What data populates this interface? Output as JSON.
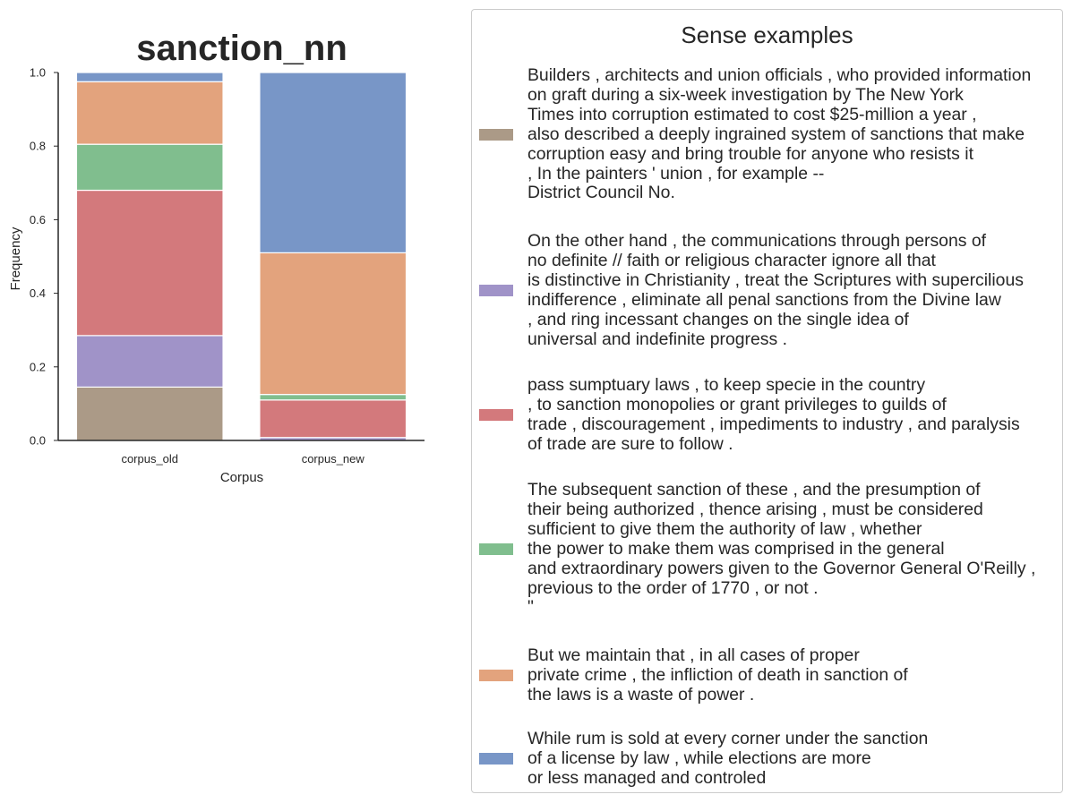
{
  "chart_data": {
    "type": "bar",
    "stacked": true,
    "normalized": true,
    "title": "sanction_nn",
    "xlabel": "Corpus",
    "ylabel": "Frequency",
    "categories": [
      "corpus_old",
      "corpus_new"
    ],
    "ylim": [
      0,
      1
    ],
    "yticks": [
      "0.0",
      "0.2",
      "0.4",
      "0.6",
      "0.8",
      "1.0"
    ],
    "grid": false,
    "legend_position": "right",
    "series": [
      {
        "color": "#ab9a87",
        "values": [
          0.145,
          0.0
        ]
      },
      {
        "color": "#a093c8",
        "values": [
          0.14,
          0.008
        ]
      },
      {
        "color": "#d3797c",
        "values": [
          0.395,
          0.102
        ]
      },
      {
        "color": "#80be8e",
        "values": [
          0.125,
          0.015
        ]
      },
      {
        "color": "#e3a37d",
        "values": [
          0.17,
          0.385
        ]
      },
      {
        "color": "#7896c7",
        "values": [
          0.025,
          0.49
        ]
      }
    ]
  },
  "legend": {
    "title": "Sense examples",
    "entries": [
      {
        "color": "#ab9a87",
        "lines": [
          "Builders , architects and union officials , who provided information",
          "on graft during a six-week investigation by The New York",
          "Times into corruption estimated to cost $25-million a year ,",
          "also described a deeply ingrained system of sanctions that make",
          "corruption easy and bring trouble for anyone who resists it",
          ", In the painters ' union , for example --",
          "District Council No."
        ]
      },
      {
        "color": "#a093c8",
        "lines": [
          "On the other hand , the communications through persons of",
          "no definite // faith or religious character ignore all that",
          "is distinctive in Christianity , treat the Scriptures with supercilious",
          "indifference , eliminate all penal sanctions from the Divine law",
          ", and ring incessant changes on the single idea of",
          "universal and indefinite progress ."
        ]
      },
      {
        "color": "#d3797c",
        "lines": [
          "pass sumptuary laws , to keep specie in the country",
          ", to sanction monopolies or grant privileges to guilds of",
          "trade , discouragement , impediments to industry , and paralysis",
          "of trade are sure to follow ."
        ]
      },
      {
        "color": "#80be8e",
        "lines": [
          "The subsequent sanction of these , and the presumption of",
          "their being authorized , thence arising , must be considered",
          "sufficient to give them the authority of law , whether",
          "the power to make them was comprised in the general",
          "and extraordinary powers given to the Governor General O'Reilly ,",
          "previous to the order of 1770 , or not .",
          "\""
        ]
      },
      {
        "color": "#e3a37d",
        "lines": [
          "But we maintain that , in all cases of proper",
          "private crime , the infliction of death in sanction of",
          "the laws is a waste of power ."
        ]
      },
      {
        "color": "#7896c7",
        "lines": [
          "While rum is sold at every corner under the sanction",
          "of a license by law , while elections are more",
          "or less managed and controled"
        ]
      }
    ]
  }
}
